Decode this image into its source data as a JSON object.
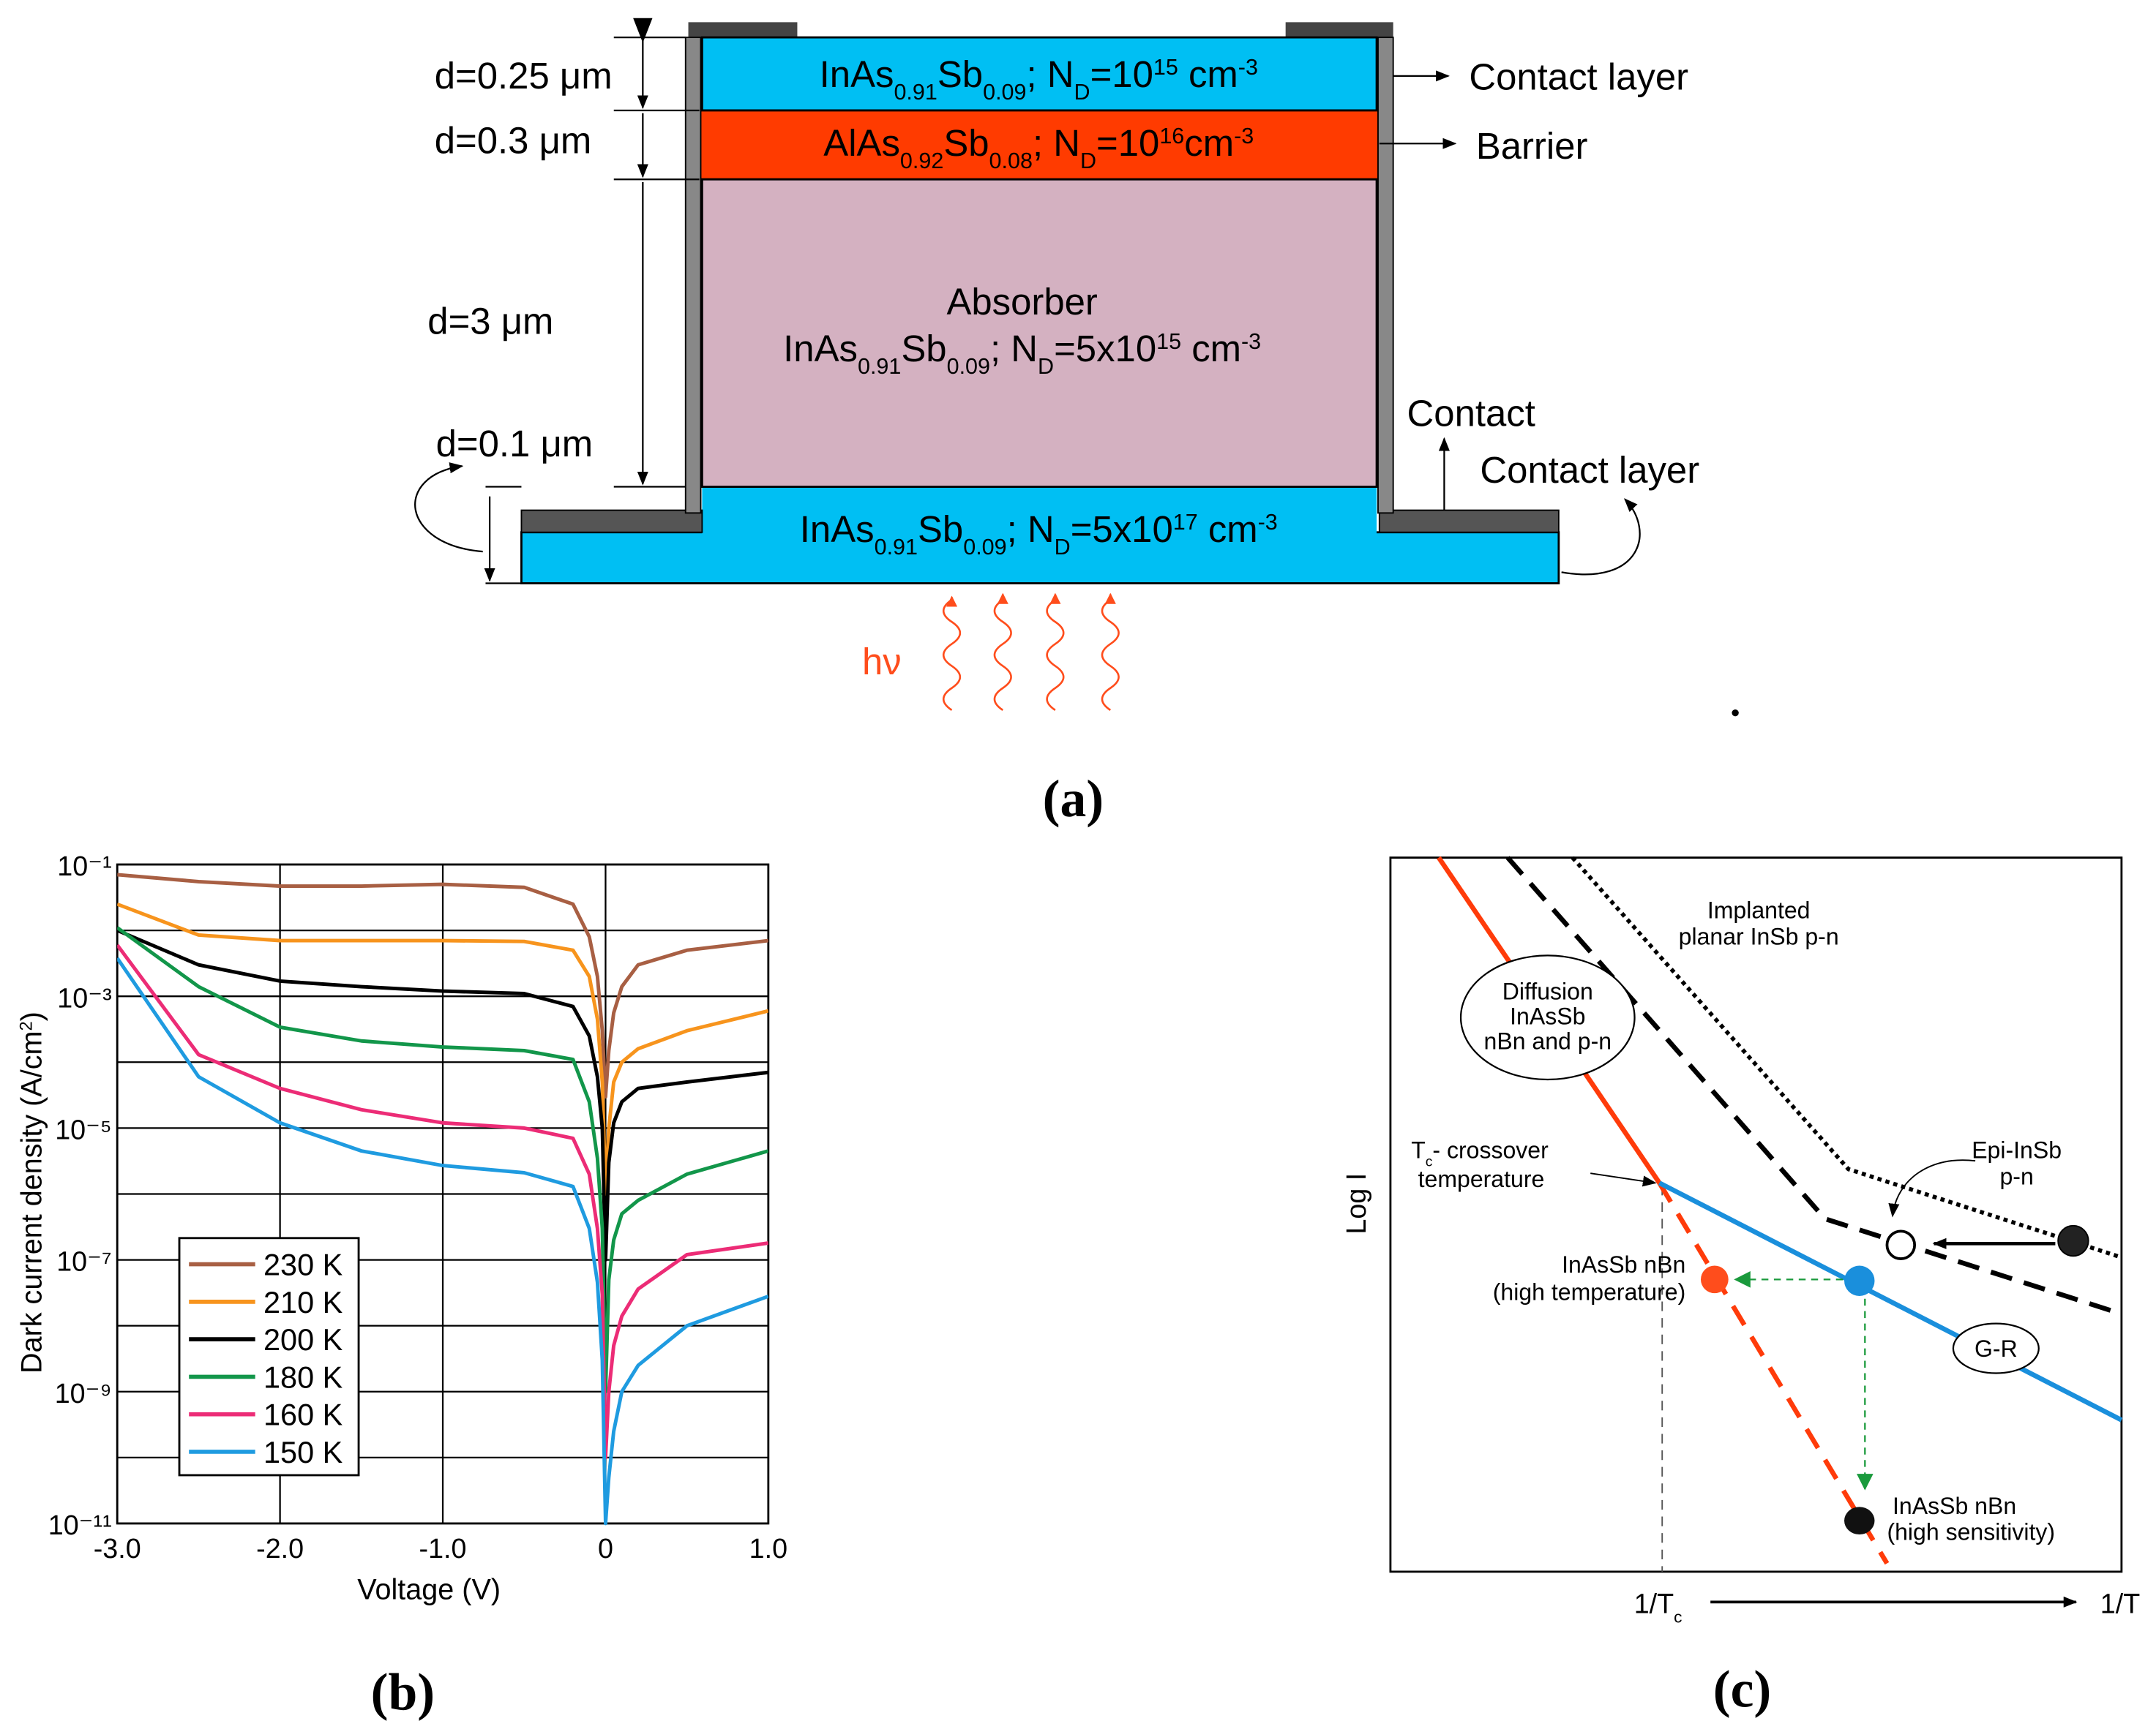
{
  "panel_a": {
    "caption": "(a)",
    "thickness": [
      "d=0.25 μm",
      "d=0.3 μm",
      "d=3 μm",
      "d=0.1 μm"
    ],
    "absorber_title": "Absorber",
    "layers": [
      [
        "InAs",
        {
          "sub": "0.91"
        },
        "Sb",
        {
          "sub": "0.09"
        },
        "; N",
        {
          "sub": "D"
        },
        "=10",
        {
          "sup": "15"
        },
        " cm",
        {
          "sup": "-3"
        }
      ],
      [
        "AlAs",
        {
          "sub": "0.92"
        },
        "Sb",
        {
          "sub": "0.08"
        },
        "; N",
        {
          "sub": "D"
        },
        "=10",
        {
          "sup": "16"
        },
        "cm",
        {
          "sup": "-3"
        }
      ],
      [
        "InAs",
        {
          "sub": "0.91"
        },
        "Sb",
        {
          "sub": "0.09"
        },
        "; N",
        {
          "sub": "D"
        },
        "=5x10",
        {
          "sup": "15"
        },
        " cm",
        {
          "sup": "-3"
        }
      ],
      [
        "InAs",
        {
          "sub": "0.91"
        },
        "Sb",
        {
          "sub": "0.09"
        },
        "; N",
        {
          "sub": "D"
        },
        "=5x10",
        {
          "sup": "17"
        },
        " cm",
        {
          "sup": "-3"
        }
      ]
    ],
    "side_labels": [
      "Contact layer",
      "Barrier",
      "Contact",
      "Contact layer"
    ],
    "light": "hν"
  },
  "chart_data": {
    "type": "line",
    "caption": "(b)",
    "x_label": "Voltage (V)",
    "y_label": [
      "Dark current density (A/cm",
      {
        "sup": "2"
      },
      ")"
    ],
    "yscale": "log",
    "grid": true,
    "legend": "lower left",
    "xlim": [
      -3,
      1
    ],
    "xticks": [
      {
        "value": -3,
        "label": "-3.0"
      },
      {
        "value": -2,
        "label": "-2.0"
      },
      {
        "value": -1,
        "label": "-1.0"
      },
      0,
      {
        "value": 1,
        "label": "1.0"
      }
    ],
    "ylim": [
      1e-11,
      0.1
    ],
    "yticks": [
      {
        "value": 0.1,
        "label": "10⁻¹"
      },
      {
        "value": 0.001,
        "label": "10⁻³"
      },
      {
        "value": 1e-05,
        "label": "10⁻⁵"
      },
      {
        "value": 1e-07,
        "label": "10⁻⁷"
      },
      {
        "value": 1e-09,
        "label": "10⁻⁹"
      },
      {
        "value": 1e-11,
        "label": "10⁻¹¹"
      }
    ],
    "yminorticks": [
      0.01,
      0.0001,
      1e-06,
      1e-08,
      1e-10
    ],
    "x": [
      -3,
      -2.5,
      -2,
      -1.5,
      -1,
      -0.5,
      -0.2,
      -0.1,
      -0.05,
      -0.02,
      0,
      0.02,
      0.05,
      0.1,
      0.2,
      0.5,
      1
    ],
    "series": [
      {
        "name": "230 K",
        "color": "#a85f43",
        "values": [
          0.07,
          0.055,
          0.047,
          0.047,
          0.05,
          0.045,
          0.025,
          0.008,
          0.002,
          0.0003,
          3e-05,
          0.00015,
          0.00056,
          0.0014,
          0.003,
          0.005,
          0.007
        ]
      },
      {
        "name": "210 K",
        "color": "#f7941d",
        "values": [
          0.025,
          0.0085,
          0.007,
          0.007,
          0.007,
          0.0068,
          0.005,
          0.002,
          0.00045,
          5e-05,
          1e-06,
          1e-05,
          5e-05,
          0.0001,
          0.00016,
          0.0003,
          0.0006
        ]
      },
      {
        "name": "200 K",
        "color": "#000000",
        "values": [
          0.01,
          0.003,
          0.0017,
          0.0014,
          0.0012,
          0.0011,
          0.0007,
          0.00025,
          6e-05,
          1e-05,
          1e-07,
          3e-06,
          1.2e-05,
          2.5e-05,
          4e-05,
          5e-05,
          7e-05
        ]
      },
      {
        "name": "180 K",
        "color": "#12964a",
        "values": [
          0.011,
          0.0014,
          0.00034,
          0.00021,
          0.00017,
          0.00015,
          0.00011,
          2.5e-05,
          3.5e-06,
          3e-07,
          1e-09,
          5e-08,
          2e-07,
          5e-07,
          8e-07,
          2e-06,
          4.5e-06
        ]
      },
      {
        "name": "160 K",
        "color": "#ec2c76",
        "values": [
          0.006,
          0.00013,
          4e-05,
          1.9e-05,
          1.2e-05,
          1e-05,
          7e-06,
          2e-06,
          3e-07,
          3e-08,
          1e-10,
          1e-09,
          5e-09,
          1.4e-08,
          3.6e-08,
          1.2e-07,
          1.8e-07
        ]
      },
      {
        "name": "150 K",
        "color": "#1f9be0",
        "values": [
          0.0038,
          6e-05,
          1.2e-05,
          4.5e-06,
          2.7e-06,
          2.1e-06,
          1.3e-06,
          3e-07,
          4.6e-08,
          3e-09,
          1e-11,
          5e-11,
          2.5e-10,
          1e-09,
          2.5e-09,
          1e-08,
          2.8e-08
        ]
      }
    ]
  },
  "panel_c": {
    "caption": "(c)",
    "y_label": "Log I",
    "x_label_left": [
      "1/T",
      {
        "sub": "c"
      }
    ],
    "x_label_right": "1/T",
    "implanted": [
      "Implanted",
      "planar InSb p-n"
    ],
    "diffusion": [
      "Diffusion",
      "InAsSb",
      "nBn and p-n"
    ],
    "crossover": [
      [
        "T",
        {
          "sub": "c"
        },
        "- crossover"
      ],
      "temperature"
    ],
    "epi": [
      "Epi-InSb",
      "p-n"
    ],
    "high_temperature": [
      "InAsSb nBn",
      "(high temperature)"
    ],
    "gr": "G-R",
    "high_sensitivity": [
      "InAsSb nBn",
      "(high sensitivity)"
    ]
  }
}
